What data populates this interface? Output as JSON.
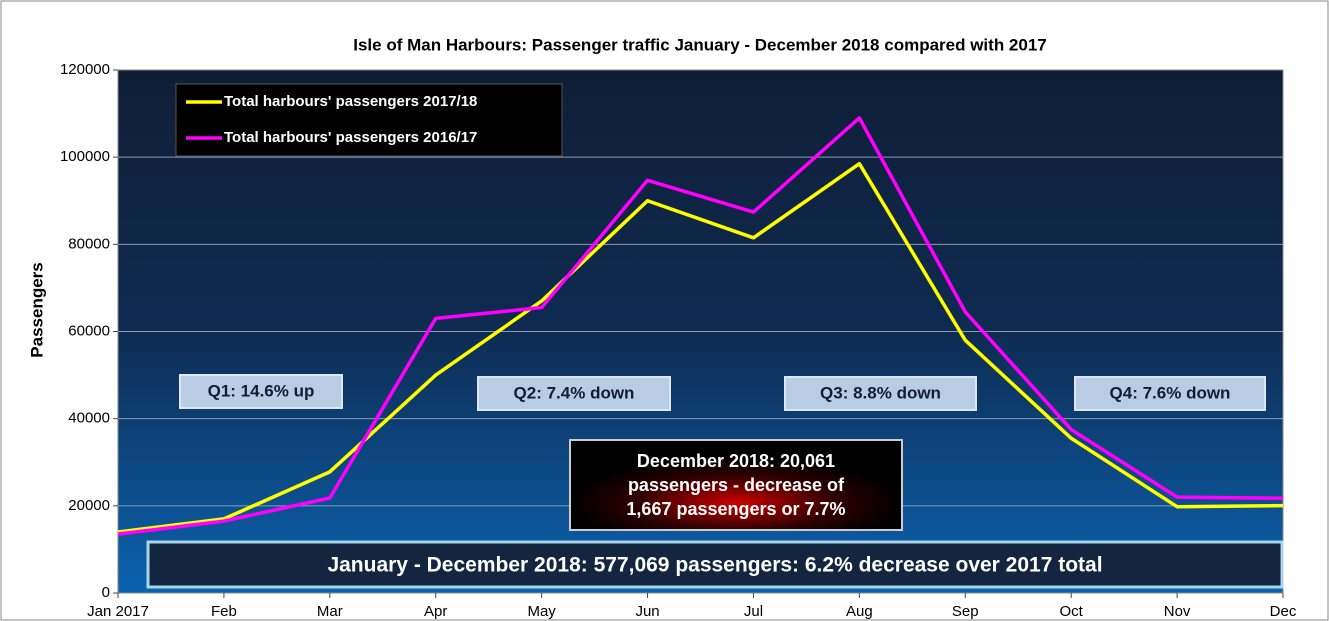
{
  "chart_data": {
    "type": "line",
    "title": "Isle of Man Harbours: Passenger traffic January - December 2018 compared with 2017",
    "y_label": "Passengers",
    "categories": [
      "Jan 2017",
      "Feb",
      "Mar",
      "Apr",
      "May",
      "Jun",
      "Jul",
      "Aug",
      "Sep",
      "Oct",
      "Nov",
      "Dec"
    ],
    "series": [
      {
        "name": "Total harbours' passengers 2017/18",
        "color": "#ffff00",
        "values": [
          14000,
          17000,
          27800,
          50000,
          67000,
          90000,
          81500,
          98500,
          58000,
          35500,
          19800,
          20061
        ]
      },
      {
        "name": "Total harbours' passengers 2016/17",
        "color": "#ff00ff",
        "values": [
          13500,
          16500,
          21800,
          63000,
          65500,
          94700,
          87400,
          109000,
          64500,
          37500,
          22000,
          21728
        ]
      }
    ],
    "ylim": [
      0,
      120000
    ],
    "yticks": [
      0,
      20000,
      40000,
      60000,
      80000,
      100000,
      120000
    ],
    "grid": true,
    "legend": "top-left",
    "annotations": [
      "Q1: 14.6% up",
      "Q2: 7.4% down",
      "Q3: 8.8% down",
      "Q4: 7.6% down"
    ],
    "december_note": [
      "December 2018: 20,061",
      "passengers - decrease of",
      "1,667 passengers or 7.7%"
    ],
    "summary": "January - December 2018: 577,069 passengers: 6.2% decrease over 2017 total"
  }
}
